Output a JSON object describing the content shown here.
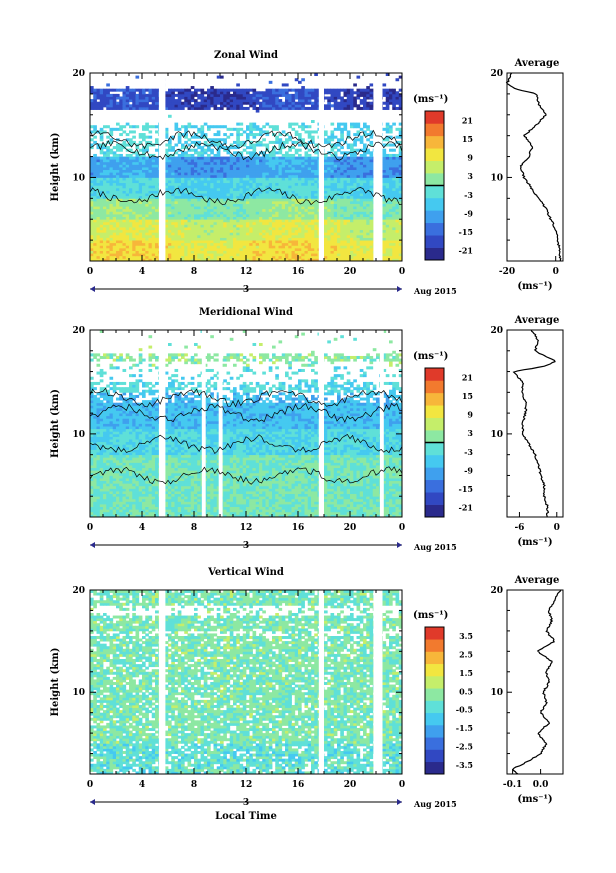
{
  "page": {
    "background": "#ffffff"
  },
  "colorscale": [
    "#2a2a8c",
    "#3148c2",
    "#3a6fde",
    "#3fa0ee",
    "#45c9f0",
    "#5fe0d8",
    "#8de8a2",
    "#c5ee6a",
    "#f2e640",
    "#f7b63a",
    "#f27a2e",
    "#e03a2a"
  ],
  "chart_data": [
    {
      "type": "heatmap",
      "title": "Zonal Wind",
      "ylabel": "Height (km)",
      "ylim": [
        2,
        20
      ],
      "yticks": [
        "10",
        "20"
      ],
      "xlim": [
        0,
        24
      ],
      "xticks": [
        "0",
        "4",
        "8",
        "12",
        "16",
        "20",
        "0"
      ],
      "date_day": "3",
      "date_label": "Aug 2015",
      "data_gaps_hours": [
        [
          5.3,
          5.8
        ],
        [
          17.6,
          18.0
        ],
        [
          21.8,
          22.5
        ]
      ],
      "colorbar": {
        "unit": "(ms⁻¹)",
        "ticks": [
          "21",
          "15",
          "9",
          "3",
          "-3",
          "-9",
          "-15",
          "-21"
        ],
        "range": [
          -24,
          24
        ],
        "zero_line": true
      },
      "profile": {
        "title": "Average",
        "xlim": [
          -20,
          3
        ],
        "xticks": [
          "-20",
          "0"
        ],
        "xunit": "(ms⁻¹)",
        "yticks": [
          "10",
          "20"
        ],
        "height_km": [
          2.0,
          3.0,
          4.0,
          5.0,
          6.0,
          7.0,
          8.0,
          9.0,
          10.0,
          11.0,
          12.0,
          13.0,
          14.0,
          15.0,
          16.0,
          17.0,
          18.0,
          18.5,
          19.0,
          20.0
        ],
        "values": [
          2.0,
          1.5,
          1.0,
          0.0,
          -2.0,
          -4.0,
          -7.0,
          -10.0,
          -13.0,
          -14.5,
          -11.0,
          -9.5,
          -13.0,
          -8.0,
          -4.0,
          -7.0,
          -8.0,
          -17.0,
          -20.0,
          -18.0
        ]
      }
    },
    {
      "type": "heatmap",
      "title": "Meridional Wind",
      "ylabel": "Height (km)",
      "ylim": [
        2,
        20
      ],
      "yticks": [
        "10",
        "20"
      ],
      "xlim": [
        0,
        24
      ],
      "xticks": [
        "0",
        "4",
        "8",
        "12",
        "16",
        "20",
        "0"
      ],
      "date_day": "3",
      "date_label": "Aug 2015",
      "data_gaps_hours": [
        [
          5.3,
          5.8
        ],
        [
          8.6,
          8.9
        ],
        [
          9.9,
          10.2
        ],
        [
          17.6,
          18.0
        ],
        [
          22.3,
          22.6
        ]
      ],
      "colorbar": {
        "unit": "(ms⁻¹)",
        "ticks": [
          "21",
          "15",
          "9",
          "3",
          "-3",
          "-9",
          "-15",
          "-21"
        ],
        "range": [
          -24,
          24
        ],
        "zero_line": true
      },
      "profile": {
        "title": "Average",
        "xlim": [
          -8,
          1
        ],
        "xticks": [
          "-6",
          "0"
        ],
        "xunit": "(ms⁻¹)",
        "yticks": [
          "10",
          "20"
        ],
        "height_km": [
          2.0,
          3.0,
          4.0,
          5.0,
          6.0,
          7.0,
          8.0,
          9.0,
          10.0,
          11.0,
          12.0,
          13.0,
          14.0,
          15.0,
          16.0,
          16.5,
          17.0,
          17.5,
          18.0,
          19.0,
          20.0
        ],
        "values": [
          -1.5,
          -1.5,
          -2.0,
          -2.0,
          -2.5,
          -3.0,
          -3.5,
          -4.5,
          -5.5,
          -5.5,
          -5.0,
          -5.0,
          -5.5,
          -5.5,
          -7.0,
          -2.0,
          0.0,
          -2.0,
          -3.5,
          -3.0,
          -4.0
        ]
      }
    },
    {
      "type": "heatmap",
      "title": "Vertical Wind",
      "xlabel": "Local Time",
      "ylabel": "Height (km)",
      "ylim": [
        2,
        20
      ],
      "yticks": [
        "10",
        "20"
      ],
      "xlim": [
        0,
        24
      ],
      "xticks": [
        "0",
        "4",
        "8",
        "12",
        "16",
        "20",
        "0"
      ],
      "date_day": "3",
      "date_label": "Aug 2015",
      "data_gaps_hours": [
        [
          5.3,
          5.8
        ],
        [
          17.6,
          18.0
        ],
        [
          21.8,
          22.5
        ]
      ],
      "colorbar": {
        "unit": "(ms⁻¹)",
        "ticks": [
          "3.5",
          "2.5",
          "1.5",
          "0.5",
          "-0.5",
          "-1.5",
          "-2.5",
          "-3.5"
        ],
        "range": [
          -4,
          4
        ],
        "zero_line": false
      },
      "profile": {
        "title": "Average",
        "xlim": [
          -0.12,
          0.08
        ],
        "xticks": [
          "-0.1",
          "0.0"
        ],
        "xunit": "(ms⁻¹)",
        "yticks": [
          "10",
          "20"
        ],
        "height_km": [
          2.0,
          2.5,
          3.0,
          4.0,
          5.0,
          6.0,
          7.0,
          8.0,
          9.0,
          10.0,
          11.0,
          12.0,
          13.0,
          14.0,
          15.0,
          16.0,
          17.0,
          18.0,
          19.0,
          20.0
        ],
        "values": [
          -0.08,
          -0.1,
          -0.06,
          0.0,
          0.02,
          -0.01,
          0.03,
          0.0,
          0.02,
          0.01,
          0.03,
          0.02,
          0.04,
          -0.01,
          0.05,
          0.02,
          0.04,
          0.03,
          0.05,
          0.07
        ]
      }
    }
  ]
}
